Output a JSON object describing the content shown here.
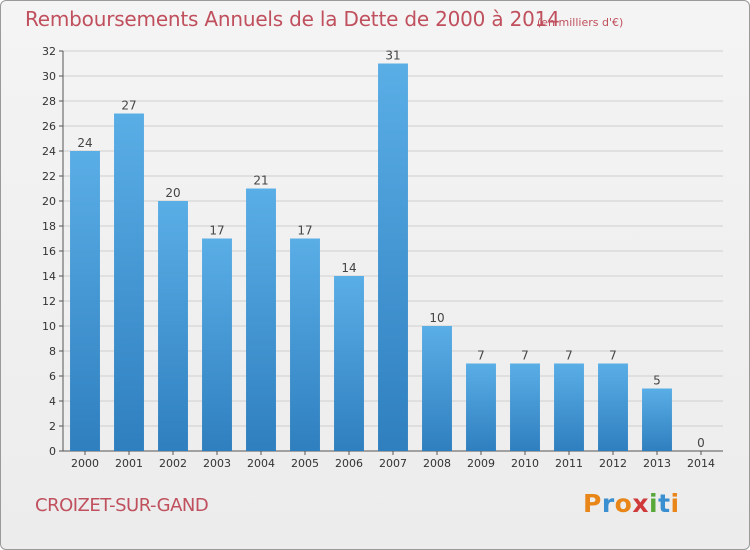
{
  "title": "Remboursements Annuels de la Dette de 2000 à 2014",
  "subtitle": "(en milliers d'€)",
  "commune": "CROIZET-SUR-GAND",
  "logo": {
    "letters": [
      "P",
      "r",
      "o",
      "x",
      "i",
      "t",
      "i"
    ],
    "colors": [
      "#e8861a",
      "#3a8fd0",
      "#e8861a",
      "#d03a3a",
      "#58a83a",
      "#3a8fd0",
      "#e8861a"
    ]
  },
  "colors": {
    "title": "#c0505d",
    "bar_top": "#5aaee6",
    "bar_bottom": "#2f7fbf",
    "grid": "#cfcfcf"
  },
  "chart_data": {
    "type": "bar",
    "title": "Remboursements Annuels de la Dette de 2000 à 2014",
    "subtitle": "(en milliers d'€)",
    "xlabel": "",
    "ylabel": "",
    "categories": [
      "2000",
      "2001",
      "2002",
      "2003",
      "2004",
      "2005",
      "2006",
      "2007",
      "2008",
      "2009",
      "2010",
      "2011",
      "2012",
      "2013",
      "2014"
    ],
    "values": [
      24,
      27,
      20,
      17,
      21,
      17,
      14,
      31,
      10,
      7,
      7,
      7,
      7,
      5,
      0
    ],
    "value_labels": [
      "24",
      "27",
      "20",
      "17",
      "21",
      "17",
      "14",
      "31",
      "10",
      "7",
      "7",
      "7",
      "7",
      "5",
      "0"
    ],
    "ylim": [
      0,
      32
    ],
    "yticks": [
      "0",
      "2",
      "4",
      "6",
      "8",
      "10",
      "12",
      "14",
      "16",
      "18",
      "20",
      "22",
      "24",
      "26",
      "28",
      "30",
      "32"
    ],
    "grid": true,
    "legend": "none"
  }
}
